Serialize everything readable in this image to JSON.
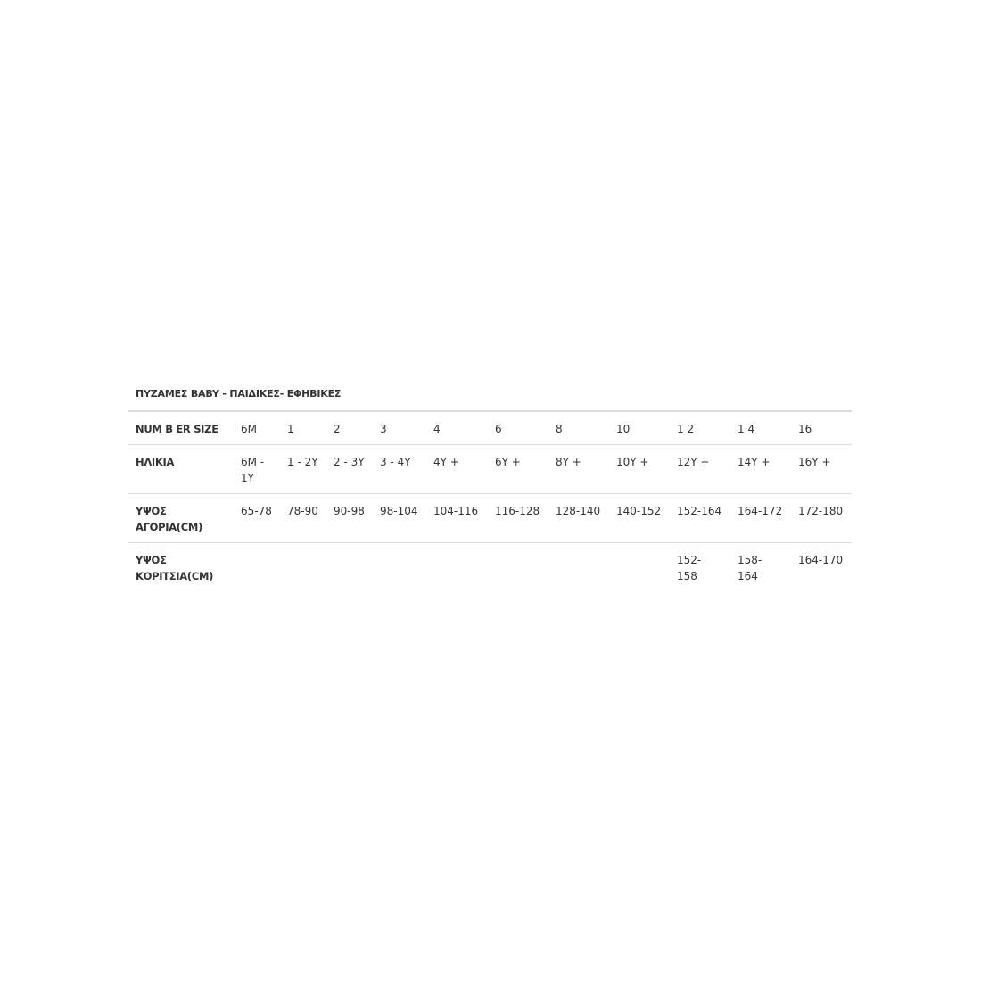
{
  "title": "ΠΥΖΑΜΕΣ BABY - ΠΑΙΔΙΚΕΣ- ΕΦΗΒΙΚΕΣ",
  "rows": [
    {
      "label": "NUM B ER SIZE",
      "cells": [
        "6M",
        "1",
        "2",
        "3",
        "4",
        "6",
        "8",
        "10",
        "1 2",
        "1 4",
        "16"
      ]
    },
    {
      "label": "ΗΛΙΚΙΑ",
      "cells": [
        "6M - 1Y",
        "1 - 2Y",
        "2 - 3Y",
        "3 - 4Y",
        "4Y +",
        "6Y +",
        "8Y +",
        "10Y +",
        "12Y +",
        "14Y +",
        "16Y +"
      ]
    },
    {
      "label": "ΥΨΟΣ ΑΓΟΡΙΑ(CM)",
      "cells": [
        "65-78",
        "78-90",
        "90-98",
        "98-104",
        "104-116",
        "116-128",
        "128-140",
        "140-152",
        "152-164",
        "164-172",
        "172-180"
      ]
    },
    {
      "label": "ΥΨΟΣ ΚΟΡΙΤΣΙΑ(CM)",
      "cells": [
        "",
        "",
        "",
        "",
        "",
        "",
        "",
        "",
        "152- 158",
        "158- 164",
        "164-170"
      ]
    }
  ]
}
